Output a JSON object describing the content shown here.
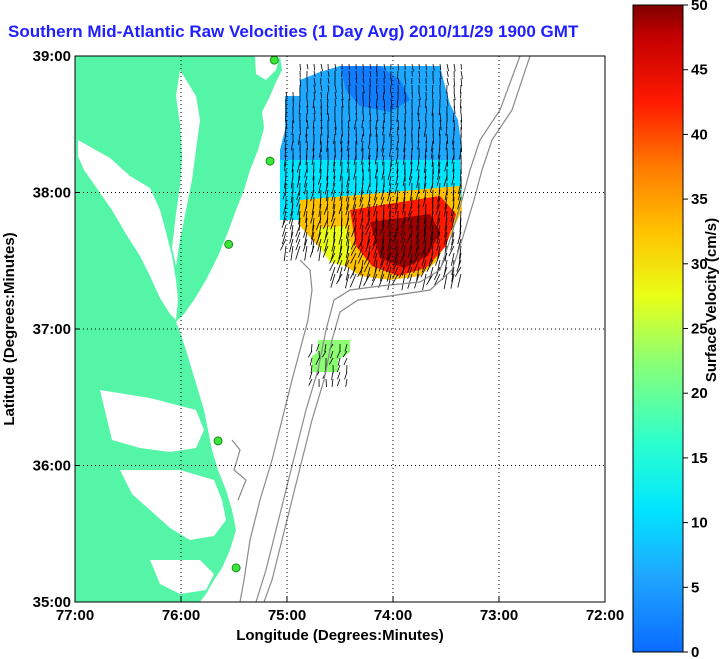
{
  "title": "Southern Mid-Atlantic Raw Velocities (1 Day Avg) 2010/11/29 1900 GMT",
  "x_axis": {
    "label": "Longitude (Degrees:Minutes)",
    "ticks": [
      "77:00",
      "76:00",
      "75:00",
      "74:00",
      "73:00",
      "72:00"
    ]
  },
  "y_axis": {
    "label": "Latitude (Degrees:Minutes)",
    "ticks": [
      "39:00",
      "38:00",
      "37:00",
      "36:00",
      "35:00"
    ]
  },
  "colorbar": {
    "label": "Surface Velocity (cm/s)",
    "ticks": [
      "50",
      "45",
      "40",
      "35",
      "30",
      "25",
      "20",
      "15",
      "10",
      "5",
      "0"
    ],
    "min": 0,
    "max": 50
  },
  "colors": {
    "land": "#55f5a8",
    "water": "#ffffff",
    "title": "#1f1fff",
    "station": "#39e639",
    "bathymetry": "#8a8a8a",
    "grid": "#000000"
  },
  "map_extent": {
    "lon": [
      -77,
      -72
    ],
    "lat": [
      35,
      39
    ]
  },
  "stations": [
    {
      "lon": -75.12,
      "lat": 38.97
    },
    {
      "lon": -75.16,
      "lat": 38.23
    },
    {
      "lon": -75.55,
      "lat": 37.62
    },
    {
      "lon": -75.65,
      "lat": 36.18
    },
    {
      "lon": -75.48,
      "lat": 35.25
    }
  ],
  "velocity_regions": [
    {
      "name": "north-patch",
      "speed": 8
    },
    {
      "name": "middle-band",
      "speed": 16
    },
    {
      "name": "south-core",
      "speed": 45
    },
    {
      "name": "south-edge",
      "speed": 32
    },
    {
      "name": "offshore-small",
      "speed": 19
    }
  ]
}
